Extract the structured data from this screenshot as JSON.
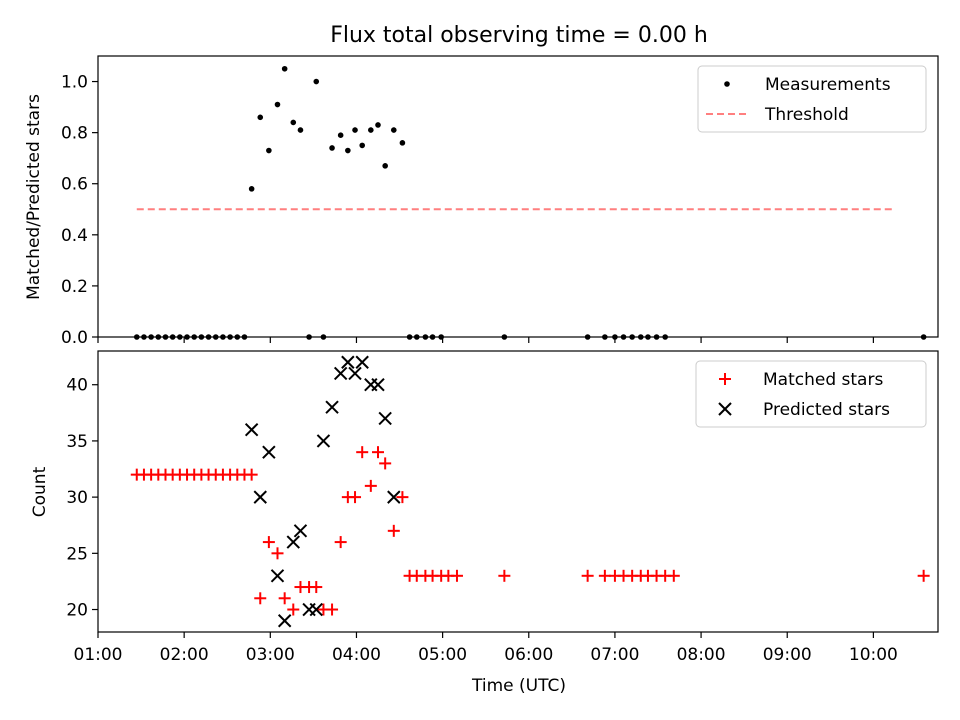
{
  "title": "Flux total observing time = 0.00 h",
  "chart_data": [
    {
      "type": "scatter",
      "ylabel": "Matched/Predicted stars",
      "ylim": [
        0,
        1.1
      ],
      "yticks": [
        0.0,
        0.2,
        0.4,
        0.6,
        0.8,
        1.0
      ],
      "ytick_labels": [
        "0.0",
        "0.2",
        "0.4",
        "0.6",
        "0.8",
        "1.0"
      ],
      "grid": false,
      "legend": "top-right",
      "legend_entries": [
        "Measurements",
        "Threshold"
      ],
      "series": [
        {
          "name": "Measurements",
          "marker": "dot",
          "color": "#000000",
          "x": [
            "01:27",
            "01:32",
            "01:37",
            "01:42",
            "01:47",
            "01:52",
            "01:57",
            "02:02",
            "02:07",
            "02:12",
            "02:17",
            "02:22",
            "02:27",
            "02:32",
            "02:37",
            "02:42",
            "02:47",
            "02:53",
            "02:59",
            "03:05",
            "03:10",
            "03:16",
            "03:21",
            "03:27",
            "03:32",
            "03:37",
            "03:43",
            "03:49",
            "03:54",
            "03:59",
            "04:04",
            "04:10",
            "04:15",
            "04:20",
            "04:26",
            "04:32",
            "04:37",
            "04:42",
            "04:48",
            "04:53",
            "04:59",
            "05:43",
            "06:41",
            "06:53",
            "07:00",
            "07:06",
            "07:12",
            "07:18",
            "07:23",
            "07:29",
            "07:35",
            "10:35"
          ],
          "y": [
            0,
            0,
            0,
            0,
            0,
            0,
            0,
            0,
            0,
            0,
            0,
            0,
            0,
            0,
            0,
            0,
            0.58,
            0.86,
            0.73,
            0.91,
            1.05,
            0.84,
            0.81,
            0,
            1.0,
            0,
            0.74,
            0.79,
            0.73,
            0.81,
            0.75,
            0.81,
            0.83,
            0.67,
            0.81,
            0.76,
            0,
            0,
            0,
            0,
            0,
            0,
            0,
            0,
            0,
            0,
            0,
            0,
            0,
            0,
            0,
            0
          ]
        },
        {
          "name": "Threshold",
          "type": "line",
          "style": "dashed",
          "color": "#ff7f7f",
          "x": [
            "01:27",
            "10:15"
          ],
          "y": [
            0.5,
            0.5
          ]
        }
      ]
    },
    {
      "type": "scatter",
      "ylabel": "Count",
      "xlabel": "Time (UTC)",
      "ylim": [
        18,
        43
      ],
      "yticks": [
        20,
        25,
        30,
        35,
        40
      ],
      "ytick_labels": [
        "20",
        "25",
        "30",
        "35",
        "40"
      ],
      "xlim": [
        "01:00",
        "10:45"
      ],
      "xticks": [
        "01:00",
        "02:00",
        "03:00",
        "04:00",
        "05:00",
        "06:00",
        "07:00",
        "08:00",
        "09:00",
        "10:00"
      ],
      "grid": false,
      "legend": "top-right",
      "legend_entries": [
        "Matched stars",
        "Predicted stars"
      ],
      "series": [
        {
          "name": "Matched stars",
          "marker": "plus",
          "color": "#ff0000",
          "x": [
            "01:27",
            "01:32",
            "01:37",
            "01:42",
            "01:47",
            "01:52",
            "01:57",
            "02:02",
            "02:07",
            "02:12",
            "02:17",
            "02:22",
            "02:27",
            "02:32",
            "02:37",
            "02:42",
            "02:47",
            "02:53",
            "02:59",
            "03:05",
            "03:10",
            "03:16",
            "03:21",
            "03:27",
            "03:32",
            "03:37",
            "03:43",
            "03:49",
            "03:54",
            "03:59",
            "04:04",
            "04:10",
            "04:15",
            "04:20",
            "04:26",
            "04:32",
            "04:37",
            "04:42",
            "04:48",
            "04:53",
            "04:59",
            "05:04",
            "05:10",
            "05:43",
            "06:41",
            "06:53",
            "07:00",
            "07:06",
            "07:12",
            "07:18",
            "07:23",
            "07:29",
            "07:35",
            "07:41",
            "10:35"
          ],
          "y": [
            32,
            32,
            32,
            32,
            32,
            32,
            32,
            32,
            32,
            32,
            32,
            32,
            32,
            32,
            32,
            32,
            32,
            21,
            26,
            25,
            21,
            20,
            22,
            22,
            22,
            20,
            20,
            26,
            30,
            30,
            34,
            31,
            34,
            33,
            27,
            30,
            23,
            23,
            23,
            23,
            23,
            23,
            23,
            23,
            23,
            23,
            23,
            23,
            23,
            23,
            23,
            23,
            23,
            23,
            23
          ]
        },
        {
          "name": "Predicted stars",
          "marker": "x",
          "color": "#000000",
          "x": [
            "02:47",
            "02:53",
            "02:59",
            "03:05",
            "03:10",
            "03:16",
            "03:21",
            "03:27",
            "03:32",
            "03:37",
            "03:43",
            "03:49",
            "03:54",
            "03:59",
            "04:04",
            "04:10",
            "04:15",
            "04:20",
            "04:26"
          ],
          "y": [
            36,
            30,
            34,
            23,
            19,
            26,
            27,
            20,
            20,
            35,
            38,
            41,
            42,
            41,
            42,
            40,
            40,
            37,
            30
          ]
        }
      ]
    }
  ]
}
